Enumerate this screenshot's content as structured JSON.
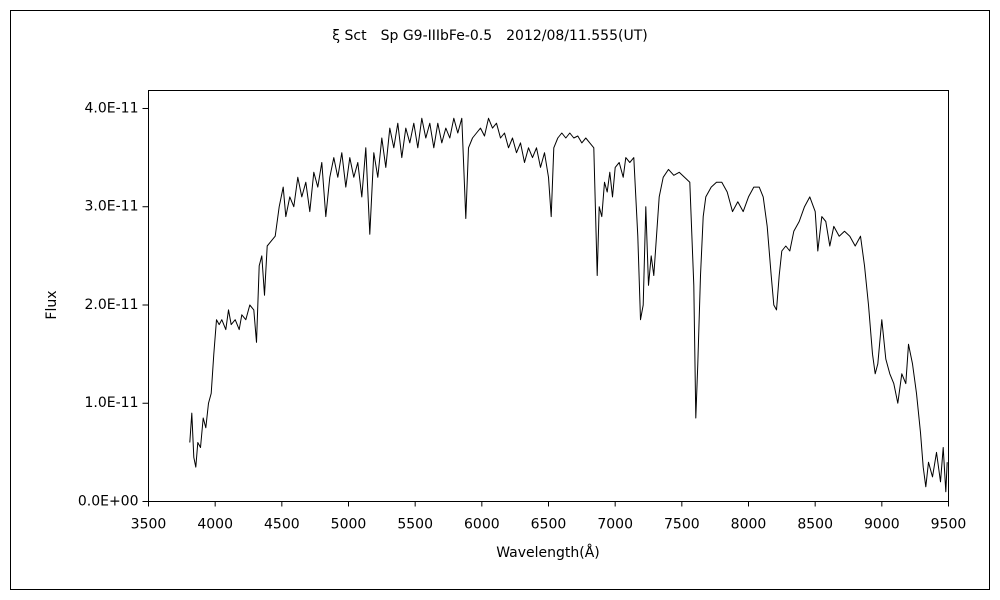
{
  "chart_data": {
    "type": "line",
    "title": "ξ Sct　Sp G9-IIIbFe-0.5　2012/08/11.555(UT)",
    "x_label": "Wavelength(Å)",
    "y_label": "Flux",
    "xlim": [
      3500,
      9500
    ],
    "ylim": [
      0,
      4.183e-11
    ],
    "xticks": [
      3500,
      4000,
      4500,
      5000,
      5500,
      6000,
      6500,
      7000,
      7500,
      8000,
      8500,
      9000,
      9500
    ],
    "yticks": [
      {
        "value": 0,
        "label": "0.0E+00"
      },
      {
        "value": 1e-11,
        "label": "1.0E-11"
      },
      {
        "value": 2e-11,
        "label": "2.0E-11"
      },
      {
        "value": 3e-11,
        "label": "3.0E-11"
      },
      {
        "value": 4e-11,
        "label": "4.0E-11"
      }
    ],
    "series": [
      {
        "color": "#000000",
        "x": [
          3810,
          3825,
          3840,
          3855,
          3870,
          3890,
          3910,
          3930,
          3950,
          3970,
          3990,
          4010,
          4030,
          4050,
          4080,
          4100,
          4120,
          4150,
          4180,
          4200,
          4230,
          4260,
          4290,
          4310,
          4330,
          4350,
          4370,
          4390,
          4420,
          4450,
          4480,
          4510,
          4530,
          4560,
          4590,
          4620,
          4650,
          4680,
          4710,
          4740,
          4770,
          4800,
          4830,
          4860,
          4890,
          4920,
          4950,
          4980,
          5010,
          5040,
          5070,
          5100,
          5130,
          5160,
          5190,
          5220,
          5250,
          5280,
          5310,
          5340,
          5370,
          5400,
          5430,
          5460,
          5490,
          5520,
          5550,
          5580,
          5610,
          5640,
          5670,
          5700,
          5730,
          5760,
          5790,
          5820,
          5850,
          5880,
          5900,
          5930,
          5960,
          5990,
          6020,
          6050,
          6080,
          6110,
          6140,
          6170,
          6200,
          6230,
          6260,
          6290,
          6320,
          6350,
          6380,
          6410,
          6440,
          6470,
          6500,
          6520,
          6540,
          6570,
          6600,
          6630,
          6660,
          6690,
          6720,
          6750,
          6780,
          6810,
          6840,
          6865,
          6880,
          6900,
          6920,
          6940,
          6960,
          6980,
          7000,
          7030,
          7060,
          7080,
          7110,
          7140,
          7170,
          7190,
          7210,
          7230,
          7250,
          7270,
          7290,
          7310,
          7330,
          7360,
          7400,
          7440,
          7480,
          7520,
          7560,
          7590,
          7605,
          7620,
          7640,
          7660,
          7680,
          7720,
          7760,
          7800,
          7840,
          7880,
          7920,
          7960,
          8000,
          8040,
          8080,
          8110,
          8140,
          8170,
          8190,
          8210,
          8230,
          8250,
          8280,
          8310,
          8340,
          8380,
          8420,
          8460,
          8500,
          8520,
          8550,
          8580,
          8610,
          8640,
          8680,
          8720,
          8760,
          8800,
          8840,
          8870,
          8900,
          8930,
          8950,
          8970,
          9000,
          9030,
          9060,
          9090,
          9120,
          9150,
          9180,
          9200,
          9230,
          9260,
          9290,
          9310,
          9330,
          9350,
          9380,
          9410,
          9440,
          9460,
          9480,
          9490
        ],
        "values": [
          6e-12,
          9e-12,
          4.5e-12,
          3.5e-12,
          6e-12,
          5.5e-12,
          8.5e-12,
          7.5e-12,
          1e-11,
          1.1e-11,
          1.5e-11,
          1.85e-11,
          1.8e-11,
          1.85e-11,
          1.75e-11,
          1.95e-11,
          1.8e-11,
          1.85e-11,
          1.75e-11,
          1.9e-11,
          1.85e-11,
          2e-11,
          1.95e-11,
          1.62e-11,
          2.4e-11,
          2.5e-11,
          2.1e-11,
          2.6e-11,
          2.65e-11,
          2.7e-11,
          3e-11,
          3.2e-11,
          2.9e-11,
          3.1e-11,
          3e-11,
          3.3e-11,
          3.1e-11,
          3.25e-11,
          2.95e-11,
          3.35e-11,
          3.2e-11,
          3.45e-11,
          2.9e-11,
          3.3e-11,
          3.5e-11,
          3.3e-11,
          3.55e-11,
          3.2e-11,
          3.5e-11,
          3.3e-11,
          3.45e-11,
          3.1e-11,
          3.6e-11,
          2.72e-11,
          3.55e-11,
          3.3e-11,
          3.7e-11,
          3.4e-11,
          3.8e-11,
          3.6e-11,
          3.85e-11,
          3.5e-11,
          3.8e-11,
          3.65e-11,
          3.85e-11,
          3.6e-11,
          3.9e-11,
          3.7e-11,
          3.85e-11,
          3.6e-11,
          3.85e-11,
          3.65e-11,
          3.8e-11,
          3.7e-11,
          3.9e-11,
          3.75e-11,
          3.9e-11,
          2.88e-11,
          3.6e-11,
          3.7e-11,
          3.75e-11,
          3.8e-11,
          3.72e-11,
          3.9e-11,
          3.8e-11,
          3.85e-11,
          3.7e-11,
          3.75e-11,
          3.6e-11,
          3.7e-11,
          3.55e-11,
          3.65e-11,
          3.45e-11,
          3.6e-11,
          3.5e-11,
          3.6e-11,
          3.4e-11,
          3.55e-11,
          3.3e-11,
          2.9e-11,
          3.6e-11,
          3.7e-11,
          3.75e-11,
          3.7e-11,
          3.75e-11,
          3.7e-11,
          3.72e-11,
          3.65e-11,
          3.7e-11,
          3.65e-11,
          3.6e-11,
          2.3e-11,
          3e-11,
          2.9e-11,
          3.25e-11,
          3.15e-11,
          3.35e-11,
          3.1e-11,
          3.4e-11,
          3.45e-11,
          3.3e-11,
          3.5e-11,
          3.45e-11,
          3.5e-11,
          2.7e-11,
          1.85e-11,
          2e-11,
          3e-11,
          2.2e-11,
          2.5e-11,
          2.3e-11,
          2.7e-11,
          3.1e-11,
          3.3e-11,
          3.38e-11,
          3.32e-11,
          3.35e-11,
          3.3e-11,
          3.25e-11,
          2.2e-11,
          8.5e-12,
          1.4e-11,
          2.3e-11,
          2.9e-11,
          3.1e-11,
          3.2e-11,
          3.25e-11,
          3.25e-11,
          3.15e-11,
          2.95e-11,
          3.05e-11,
          2.95e-11,
          3.1e-11,
          3.2e-11,
          3.2e-11,
          3.1e-11,
          2.8e-11,
          2.3e-11,
          2e-11,
          1.95e-11,
          2.3e-11,
          2.55e-11,
          2.6e-11,
          2.55e-11,
          2.75e-11,
          2.85e-11,
          3e-11,
          3.1e-11,
          2.95e-11,
          2.55e-11,
          2.9e-11,
          2.85e-11,
          2.6e-11,
          2.8e-11,
          2.7e-11,
          2.75e-11,
          2.7e-11,
          2.6e-11,
          2.7e-11,
          2.4e-11,
          2e-11,
          1.5e-11,
          1.3e-11,
          1.4e-11,
          1.85e-11,
          1.45e-11,
          1.3e-11,
          1.2e-11,
          1e-11,
          1.3e-11,
          1.2e-11,
          1.6e-11,
          1.4e-11,
          1.1e-11,
          7e-12,
          3.5e-12,
          1.5e-12,
          4e-12,
          2.5e-12,
          5e-12,
          2e-12,
          5.5e-12,
          1e-12,
          4e-12
        ]
      }
    ]
  }
}
